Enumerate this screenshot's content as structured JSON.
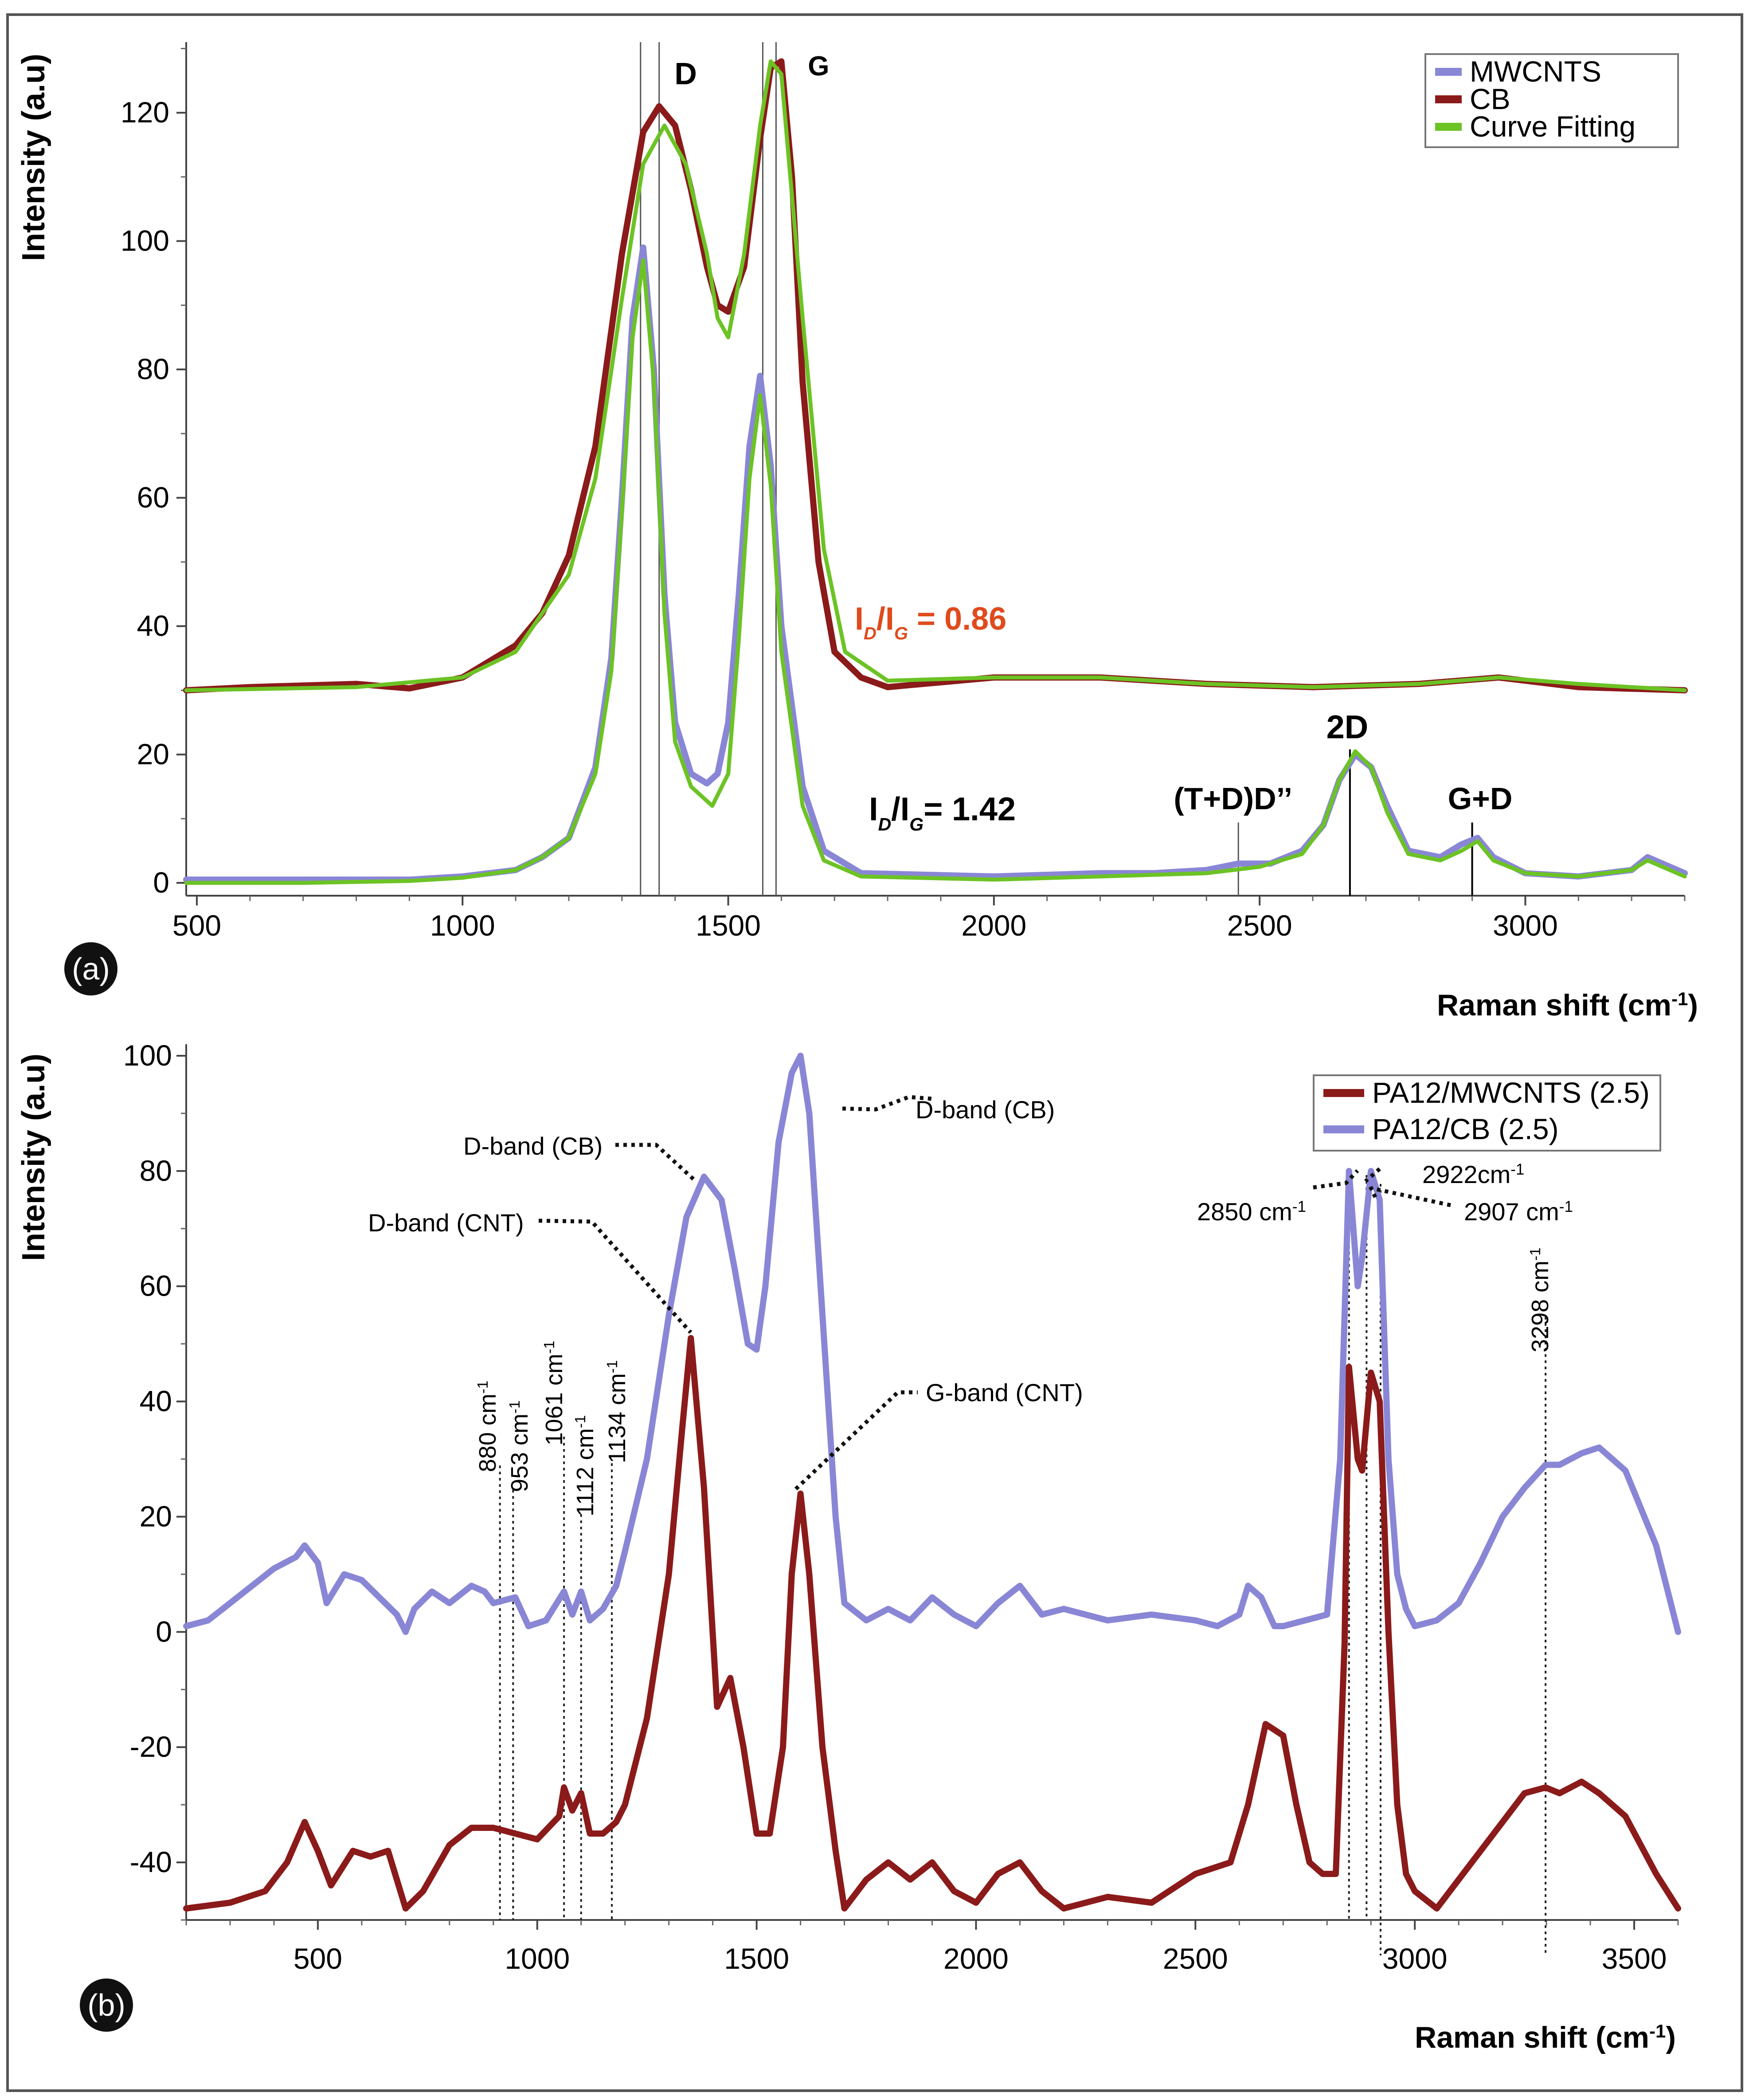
{
  "figure": {
    "panels": [
      {
        "label": "(a)"
      },
      {
        "label": "(b)"
      }
    ]
  },
  "chart_data": [
    {
      "type": "line",
      "panel": "(a)",
      "xlabel": "Raman shift (cm",
      "xlabel_sup": "-1",
      "xlabel_close": ")",
      "ylabel": "Intensity (a.u)",
      "xlim": [
        480,
        3300
      ],
      "ylim": [
        -2,
        131
      ],
      "xticks": [
        500,
        1000,
        1500,
        2000,
        2500,
        3000
      ],
      "yticks": [
        0,
        20,
        40,
        60,
        80,
        100,
        120
      ],
      "legend": {
        "position": "top-right",
        "entries": [
          {
            "name": "MWCNTS",
            "color": "#8a86d6"
          },
          {
            "name": "CB",
            "color": "#8b1a1a"
          },
          {
            "name": "Curve Fitting",
            "color": "#6cc324"
          }
        ]
      },
      "series": [
        {
          "name": "CB",
          "color": "#8b1a1a",
          "x": [
            480,
            600,
            800,
            900,
            1000,
            1100,
            1150,
            1200,
            1250,
            1300,
            1340,
            1370,
            1400,
            1430,
            1460,
            1480,
            1500,
            1530,
            1560,
            1580,
            1600,
            1620,
            1640,
            1670,
            1700,
            1750,
            1800,
            2000,
            2200,
            2400,
            2600,
            2800,
            2950,
            3100,
            3300
          ],
          "y": [
            30,
            30.5,
            31,
            30.3,
            32,
            37,
            42,
            51,
            68,
            98,
            117,
            121,
            118,
            108,
            96,
            90,
            89,
            96,
            116,
            127,
            128,
            110,
            78,
            50,
            36,
            32,
            30.5,
            32,
            32,
            31,
            30.5,
            31,
            32,
            30.5,
            30
          ]
        },
        {
          "name": "Curve Fitting (CB)",
          "color": "#6cc324",
          "x": [
            480,
            800,
            1000,
            1100,
            1200,
            1250,
            1300,
            1340,
            1380,
            1420,
            1460,
            1480,
            1500,
            1530,
            1560,
            1580,
            1600,
            1640,
            1680,
            1720,
            1800,
            2000,
            2200,
            2400,
            2600,
            2800,
            2950,
            3100,
            3300
          ],
          "y": [
            30,
            30.5,
            32,
            36,
            48,
            63,
            91,
            112,
            118,
            112,
            98,
            88,
            85,
            98,
            118,
            128,
            126,
            88,
            52,
            36,
            31.5,
            32,
            32,
            31,
            30.5,
            31,
            32,
            31,
            30
          ]
        },
        {
          "name": "MWCNTS",
          "color": "#8a86d6",
          "x": [
            480,
            700,
            900,
            1000,
            1100,
            1150,
            1200,
            1250,
            1280,
            1300,
            1320,
            1340,
            1360,
            1380,
            1400,
            1430,
            1460,
            1480,
            1500,
            1520,
            1540,
            1560,
            1580,
            1600,
            1640,
            1680,
            1750,
            2000,
            2200,
            2300,
            2400,
            2460,
            2520,
            2580,
            2620,
            2650,
            2680,
            2710,
            2740,
            2780,
            2840,
            2880,
            2910,
            2940,
            3000,
            3100,
            3200,
            3230,
            3300
          ],
          "y": [
            0.5,
            0.5,
            0.5,
            1,
            2,
            4,
            7,
            18,
            35,
            60,
            88,
            99,
            80,
            45,
            25,
            17,
            15.5,
            17,
            25,
            45,
            68,
            79,
            65,
            40,
            15,
            5,
            1.5,
            1,
            1.5,
            1.5,
            2,
            3,
            3,
            5,
            9,
            16,
            20,
            18,
            12,
            5,
            4,
            6,
            7,
            4,
            1.5,
            1,
            2,
            4,
            1.5
          ]
        },
        {
          "name": "Curve Fitting (MWCNTS)",
          "color": "#6cc324",
          "x": [
            480,
            700,
            900,
            1000,
            1100,
            1150,
            1200,
            1250,
            1280,
            1300,
            1320,
            1340,
            1360,
            1380,
            1400,
            1430,
            1470,
            1500,
            1520,
            1540,
            1560,
            1580,
            1600,
            1640,
            1680,
            1750,
            2000,
            2200,
            2400,
            2500,
            2580,
            2620,
            2650,
            2680,
            2710,
            2740,
            2780,
            2840,
            2880,
            2910,
            2940,
            3000,
            3100,
            3200,
            3230,
            3300
          ],
          "y": [
            0,
            0,
            0.3,
            0.8,
            2,
            4,
            7,
            17,
            33,
            58,
            85,
            97,
            78,
            42,
            22,
            15,
            12,
            17,
            38,
            63,
            76,
            62,
            36,
            12,
            3.5,
            1,
            0.5,
            1,
            1.5,
            2.5,
            4.5,
            9,
            16,
            20.5,
            18,
            11,
            4.5,
            3.5,
            5,
            6.5,
            3.5,
            1.5,
            1,
            2,
            3.5,
            1
          ]
        }
      ],
      "annotations": [
        {
          "text": "D"
        },
        {
          "text": "G"
        },
        {
          "text": "2D"
        },
        {
          "text": "G+D"
        },
        {
          "text": "(T+D)D’’"
        },
        {
          "text": "I",
          "sub": "D",
          "slash": "/I",
          "sub2": "G",
          "value": " = 0.86",
          "color": "#e04a1c"
        },
        {
          "text": "I",
          "sub": "D",
          "slash": "/I",
          "sub2": "G",
          "value": "= 1.42",
          "color": "#000000"
        }
      ],
      "reference_lines_x": [
        1335,
        1370,
        1565,
        1590,
        2460,
        2670,
        2900
      ]
    },
    {
      "type": "line",
      "panel": "(b)",
      "xlabel": "Raman shift (cm",
      "xlabel_sup": "-1",
      "xlabel_close": ")",
      "ylabel": "Intensity (a.u)",
      "xlim": [
        200,
        3600
      ],
      "ylim": [
        -50,
        102
      ],
      "xticks": [
        500,
        1000,
        1500,
        2000,
        2500,
        3000,
        3500
      ],
      "yticks": [
        -40,
        -20,
        0,
        20,
        40,
        60,
        80,
        100
      ],
      "ytick_labels": [
        "-40",
        "-20",
        "0",
        "20",
        "40",
        "60",
        "80",
        "100"
      ],
      "legend": {
        "position": "top-right",
        "entries": [
          {
            "name": "PA12/MWCNTS (2.5)",
            "color": "#8b1a1a"
          },
          {
            "name": "PA12/CB (2.5)",
            "color": "#8a86d6"
          }
        ]
      },
      "series": [
        {
          "name": "PA12/CB (2.5)",
          "color": "#8a86d6",
          "x": [
            200,
            250,
            300,
            350,
            400,
            450,
            470,
            500,
            520,
            560,
            600,
            640,
            680,
            700,
            720,
            760,
            800,
            850,
            880,
            900,
            950,
            980,
            1020,
            1061,
            1080,
            1100,
            1120,
            1150,
            1180,
            1200,
            1250,
            1300,
            1340,
            1380,
            1420,
            1450,
            1480,
            1500,
            1520,
            1550,
            1580,
            1600,
            1620,
            1650,
            1680,
            1700,
            1750,
            1800,
            1850,
            1900,
            1950,
            2000,
            2050,
            2100,
            2150,
            2200,
            2300,
            2400,
            2500,
            2550,
            2600,
            2620,
            2650,
            2680,
            2700,
            2750,
            2800,
            2830,
            2850,
            2870,
            2880,
            2900,
            2920,
            2940,
            2960,
            2980,
            3000,
            3050,
            3100,
            3150,
            3200,
            3250,
            3298,
            3330,
            3380,
            3420,
            3480,
            3550,
            3600
          ],
          "y": [
            1,
            2,
            5,
            8,
            11,
            13,
            15,
            12,
            5,
            10,
            9,
            6,
            3,
            0,
            4,
            7,
            5,
            8,
            7,
            5,
            6,
            1,
            2,
            7,
            3,
            7,
            2,
            4,
            8,
            14,
            30,
            55,
            72,
            79,
            75,
            63,
            50,
            49,
            60,
            85,
            97,
            100,
            90,
            55,
            20,
            5,
            2,
            4,
            2,
            6,
            3,
            1,
            5,
            8,
            3,
            4,
            2,
            3,
            2,
            1,
            3,
            8,
            6,
            1,
            1,
            2,
            3,
            30,
            80,
            60,
            65,
            80,
            75,
            30,
            10,
            4,
            1,
            2,
            5,
            12,
            20,
            25,
            29,
            29,
            31,
            32,
            28,
            15,
            0
          ]
        },
        {
          "name": "PA12/MWCNTS (2.5)",
          "color": "#8b1a1a",
          "x": [
            200,
            300,
            380,
            430,
            470,
            500,
            530,
            580,
            620,
            660,
            700,
            740,
            800,
            850,
            900,
            950,
            1000,
            1050,
            1061,
            1080,
            1100,
            1120,
            1150,
            1180,
            1200,
            1250,
            1300,
            1330,
            1350,
            1380,
            1410,
            1440,
            1470,
            1500,
            1530,
            1560,
            1580,
            1600,
            1620,
            1650,
            1680,
            1700,
            1750,
            1800,
            1850,
            1900,
            1950,
            2000,
            2050,
            2100,
            2150,
            2200,
            2300,
            2400,
            2500,
            2580,
            2620,
            2660,
            2700,
            2730,
            2760,
            2790,
            2820,
            2840,
            2850,
            2870,
            2880,
            2900,
            2920,
            2940,
            2960,
            2980,
            3000,
            3050,
            3100,
            3150,
            3200,
            3250,
            3298,
            3330,
            3380,
            3420,
            3480,
            3550,
            3600
          ],
          "y": [
            -48,
            -47,
            -45,
            -40,
            -33,
            -38,
            -44,
            -38,
            -39,
            -38,
            -48,
            -45,
            -37,
            -34,
            -34,
            -35,
            -36,
            -32,
            -27,
            -31,
            -28,
            -35,
            -35,
            -33,
            -30,
            -15,
            10,
            35,
            51,
            25,
            -13,
            -8,
            -20,
            -35,
            -35,
            -20,
            10,
            24,
            10,
            -20,
            -38,
            -48,
            -43,
            -40,
            -43,
            -40,
            -45,
            -47,
            -42,
            -40,
            -45,
            -48,
            -46,
            -47,
            -42,
            -40,
            -30,
            -16,
            -18,
            -30,
            -40,
            -42,
            -42,
            -2,
            46,
            30,
            28,
            45,
            40,
            0,
            -30,
            -42,
            -45,
            -48,
            -43,
            -38,
            -33,
            -28,
            -27,
            -28,
            -26,
            -28,
            -32,
            -42,
            -48
          ]
        }
      ],
      "annotations": [
        {
          "text": "D-band (CB)"
        },
        {
          "text": "D-band (CB)"
        },
        {
          "text": "D-band (CNT)"
        },
        {
          "text": "G-band (CNT)"
        },
        {
          "text": "2850 cm",
          "sup": "-1"
        },
        {
          "text": "2922cm",
          "sup": "-1"
        },
        {
          "text": "2907 cm",
          "sup": "-1"
        },
        {
          "text": "3298 cm",
          "sup": "-1"
        },
        {
          "text": "880 cm",
          "sup": "-1"
        },
        {
          "text": "953 cm",
          "sup": "-1"
        },
        {
          "text": "1061 cm",
          "sup": "-1"
        },
        {
          "text": "1112 cm",
          "sup": "-1"
        },
        {
          "text": "1134 cm",
          "sup": "-1"
        }
      ],
      "reference_lines_x": [
        915,
        945,
        1061,
        1100,
        1170,
        2850,
        2890,
        2922,
        3298
      ]
    }
  ]
}
